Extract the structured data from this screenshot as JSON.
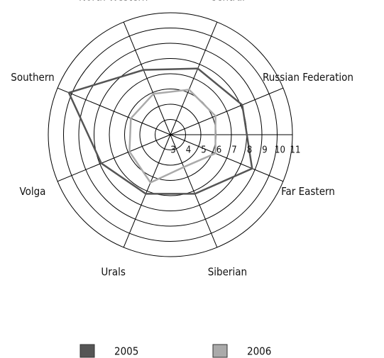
{
  "chart_data": {
    "type": "radar",
    "categories": [
      "North-Western",
      "Central",
      "Russian Federation",
      "Far Eastern",
      "Siberian",
      "Urals",
      "Volga",
      "Southern"
    ],
    "series": [
      {
        "name": "2005",
        "color": "#555555",
        "values": [
          7.6,
          7.7,
          8.1,
          8.8,
          7.2,
          7.2,
          7.9,
          10.2
        ]
      },
      {
        "name": "2006",
        "color": "#aaaaaa",
        "values": [
          5.9,
          6.2,
          6.2,
          6.2,
          5.3,
          6.4,
          5.9,
          5.8
        ]
      }
    ],
    "rlim": [
      3,
      11
    ],
    "rticks": [
      3,
      4,
      5,
      6,
      7,
      8,
      9,
      10,
      11
    ],
    "grid": true
  }
}
